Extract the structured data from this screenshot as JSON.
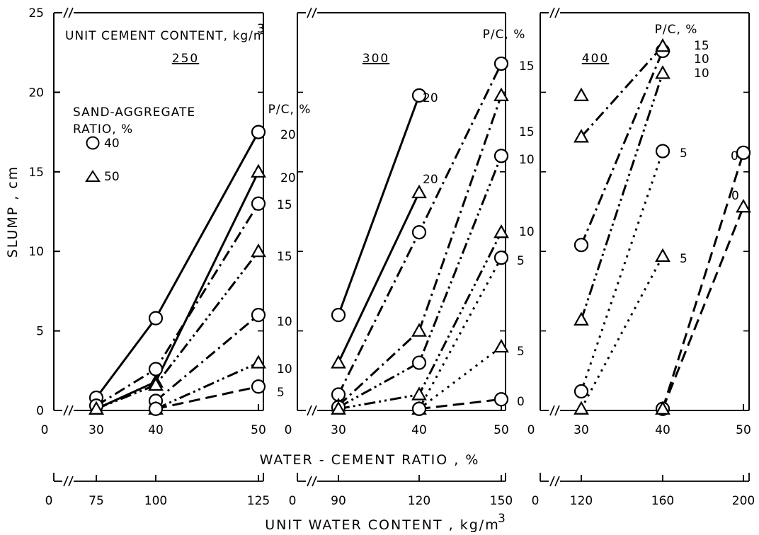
{
  "chart_data": {
    "type": "line",
    "ylabel": "SLUMP , cm",
    "xlabel": "WATER - CEMENT RATIO  ,  %",
    "xlabel2": "UNIT WATER CONTENT , kg/m³",
    "ylim": [
      0,
      25
    ],
    "y_ticks": [
      0,
      5,
      10,
      15,
      20,
      25
    ],
    "header_text": "UNIT CEMENT CONTENT, kg/m³",
    "pc_label": "P/C, %",
    "legend": {
      "title_line1": "SAND-AGGREGATE",
      "title_line2": "RATIO, %",
      "entries": [
        {
          "marker": "circle",
          "label": "40"
        },
        {
          "marker": "triangle",
          "label": "50"
        }
      ]
    },
    "panels": [
      {
        "cement": "250",
        "wc_ticks": [
          30,
          40,
          50
        ],
        "water_ticks": [
          75,
          100,
          125
        ],
        "series": [
          {
            "pc": "20",
            "marker": "circle",
            "dash": "solid",
            "points": [
              [
                30,
                0.8
              ],
              [
                40,
                5.8
              ],
              [
                50,
                17.5
              ]
            ]
          },
          {
            "pc": "20",
            "marker": "triangle",
            "dash": "solid",
            "points": [
              [
                30,
                0.1
              ],
              [
                40,
                1.8
              ],
              [
                50,
                15.0
              ]
            ]
          },
          {
            "pc": "15",
            "marker": "circle",
            "dash": "dashdot",
            "points": [
              [
                30,
                0.3
              ],
              [
                40,
                2.6
              ],
              [
                50,
                13.0
              ]
            ]
          },
          {
            "pc": "15",
            "marker": "triangle",
            "dash": "dashdotdot",
            "points": [
              [
                30,
                0.1
              ],
              [
                40,
                1.6
              ],
              [
                50,
                10.0
              ]
            ]
          },
          {
            "pc": "10",
            "marker": "circle",
            "dash": "dashdot",
            "points": [
              [
                40,
                0.6
              ],
              [
                50,
                6.0
              ]
            ]
          },
          {
            "pc": "10",
            "marker": "triangle",
            "dash": "dashdotdot",
            "points": [
              [
                40,
                0.1
              ],
              [
                50,
                3.0
              ]
            ]
          },
          {
            "pc": "5",
            "marker": "circle",
            "dash": "dash",
            "points": [
              [
                40,
                0.1
              ],
              [
                50,
                1.5
              ]
            ]
          }
        ]
      },
      {
        "cement": "300",
        "wc_ticks": [
          30,
          40,
          50
        ],
        "water_ticks": [
          90,
          120,
          150
        ],
        "series": [
          {
            "pc": "20",
            "marker": "circle",
            "dash": "solid",
            "points": [
              [
                30,
                6.0
              ],
              [
                40,
                19.8
              ]
            ]
          },
          {
            "pc": "20",
            "marker": "triangle",
            "dash": "solid",
            "points": [
              [
                30,
                3.0
              ],
              [
                40,
                13.7
              ]
            ]
          },
          {
            "pc": "15",
            "marker": "circle",
            "dash": "dashdot",
            "points": [
              [
                30,
                1.0
              ],
              [
                40,
                11.2
              ],
              [
                50,
                21.8
              ]
            ]
          },
          {
            "pc": "15",
            "marker": "triangle",
            "dash": "dashdot",
            "points": [
              [
                30,
                0.3
              ],
              [
                40,
                5.0
              ],
              [
                50,
                19.8
              ]
            ]
          },
          {
            "pc": "10",
            "marker": "circle",
            "dash": "dashdotdot",
            "points": [
              [
                30,
                0.2
              ],
              [
                40,
                3.0
              ],
              [
                50,
                16.0
              ]
            ]
          },
          {
            "pc": "10",
            "marker": "triangle",
            "dash": "dashdotdot",
            "points": [
              [
                30,
                0.1
              ],
              [
                40,
                1.0
              ],
              [
                50,
                11.2
              ]
            ]
          },
          {
            "pc": "5",
            "marker": "circle",
            "dash": "dot",
            "points": [
              [
                40,
                0.1
              ],
              [
                50,
                9.6
              ]
            ]
          },
          {
            "pc": "5",
            "marker": "triangle",
            "dash": "dot",
            "points": [
              [
                40,
                0.1
              ],
              [
                50,
                4.0
              ]
            ]
          },
          {
            "pc": "0",
            "marker": "circle",
            "dash": "dash",
            "points": [
              [
                40,
                0.1
              ],
              [
                50,
                0.7
              ]
            ]
          }
        ]
      },
      {
        "cement": "400",
        "wc_ticks": [
          30,
          40,
          50
        ],
        "water_ticks": [
          120,
          160,
          200
        ],
        "series": [
          {
            "pc": "15",
            "marker": "circle",
            "dash": "dashdot",
            "points": [
              [
                30,
                10.4
              ],
              [
                40,
                22.6
              ]
            ]
          },
          {
            "pc": "15",
            "marker": "triangle",
            "dash": "dashdot",
            "points": [
              [
                30,
                17.2
              ],
              [
                40,
                22.9
              ]
            ]
          },
          {
            "pc": "10",
            "marker": "triangle",
            "dash": "dashdotdot",
            "points": [
              [
                30,
                5.7
              ],
              [
                40,
                21.2
              ]
            ]
          },
          {
            "pc": "",
            "marker": "triangle",
            "dash": "none",
            "points": [
              [
                30,
                19.8
              ]
            ]
          },
          {
            "pc": "5",
            "marker": "circle",
            "dash": "dot",
            "points": [
              [
                30,
                1.2
              ],
              [
                40,
                16.3
              ]
            ]
          },
          {
            "pc": "5",
            "marker": "triangle",
            "dash": "dot",
            "points": [
              [
                30,
                0.1
              ],
              [
                40,
                9.7
              ]
            ]
          },
          {
            "pc": "0",
            "marker": "circle",
            "dash": "dash",
            "points": [
              [
                40,
                0.1
              ],
              [
                50,
                16.2
              ]
            ]
          },
          {
            "pc": "0",
            "marker": "triangle",
            "dash": "dash",
            "points": [
              [
                40,
                0.1
              ],
              [
                50,
                12.8
              ]
            ]
          }
        ]
      }
    ]
  }
}
